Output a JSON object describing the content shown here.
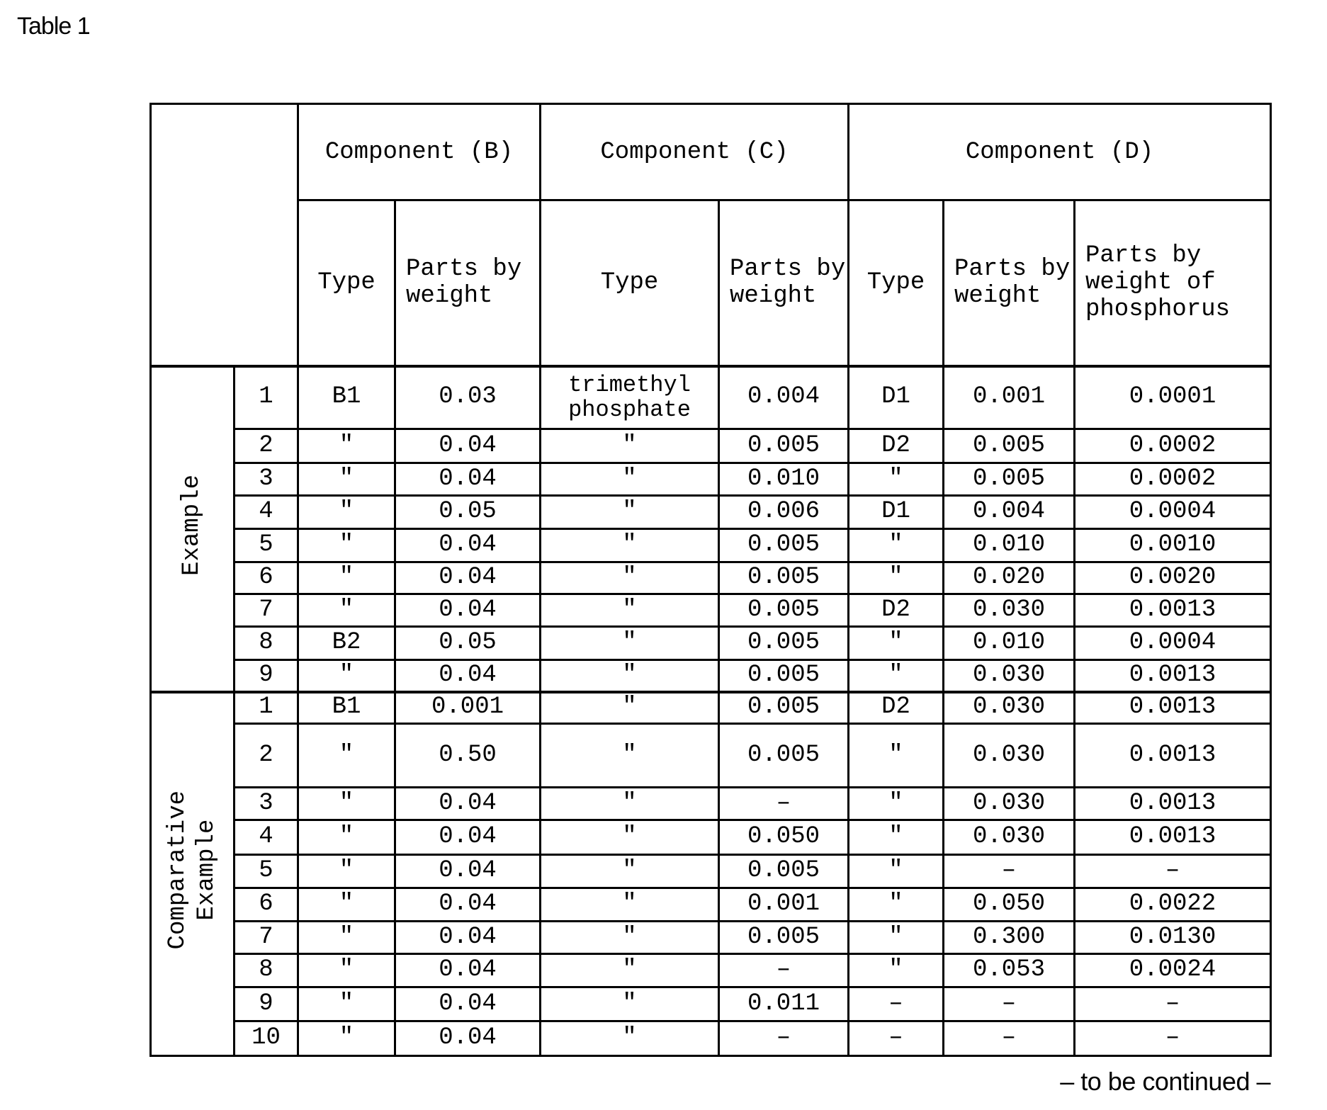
{
  "caption": "Table 1",
  "footer": "– to be continued –",
  "headers": {
    "component_b": "Component (B)",
    "component_c": "Component (C)",
    "component_d": "Component (D)",
    "type": "Type",
    "parts_by_weight": "Parts by weight",
    "parts_by_weight_phosphorus": "Parts by weight of phosphorus"
  },
  "groups": [
    {
      "label": "Example",
      "rows": [
        [
          "1",
          "B1",
          "0.03",
          "trimethyl phosphate",
          "0.004",
          "D1",
          "0.001",
          "0.0001"
        ],
        [
          "2",
          "\"",
          "0.04",
          "\"",
          "0.005",
          "D2",
          "0.005",
          "0.0002"
        ],
        [
          "3",
          "\"",
          "0.04",
          "\"",
          "0.010",
          "\"",
          "0.005",
          "0.0002"
        ],
        [
          "4",
          "\"",
          "0.05",
          "\"",
          "0.006",
          "D1",
          "0.004",
          "0.0004"
        ],
        [
          "5",
          "\"",
          "0.04",
          "\"",
          "0.005",
          "\"",
          "0.010",
          "0.0010"
        ],
        [
          "6",
          "\"",
          "0.04",
          "\"",
          "0.005",
          "\"",
          "0.020",
          "0.0020"
        ],
        [
          "7",
          "\"",
          "0.04",
          "\"",
          "0.005",
          "D2",
          "0.030",
          "0.0013"
        ],
        [
          "8",
          "B2",
          "0.05",
          "\"",
          "0.005",
          "\"",
          "0.010",
          "0.0004"
        ],
        [
          "9",
          "\"",
          "0.04",
          "\"",
          "0.005",
          "\"",
          "0.030",
          "0.0013"
        ]
      ]
    },
    {
      "label": "Comparative\nExample",
      "rows": [
        [
          "1",
          "B1",
          "0.001",
          "\"",
          "0.005",
          "D2",
          "0.030",
          "0.0013"
        ],
        [
          "2",
          "\"",
          "0.50",
          "\"",
          "0.005",
          "\"",
          "0.030",
          "0.0013"
        ],
        [
          "3",
          "\"",
          "0.04",
          "\"",
          "–",
          "\"",
          "0.030",
          "0.0013"
        ],
        [
          "4",
          "\"",
          "0.04",
          "\"",
          "0.050",
          "\"",
          "0.030",
          "0.0013"
        ],
        [
          "5",
          "\"",
          "0.04",
          "\"",
          "0.005",
          "\"",
          "–",
          "–"
        ],
        [
          "6",
          "\"",
          "0.04",
          "\"",
          "0.001",
          "\"",
          "0.050",
          "0.0022"
        ],
        [
          "7",
          "\"",
          "0.04",
          "\"",
          "0.005",
          "\"",
          "0.300",
          "0.0130"
        ],
        [
          "8",
          "\"",
          "0.04",
          "\"",
          "–",
          "\"",
          "0.053",
          "0.0024"
        ],
        [
          "9",
          "\"",
          "0.04",
          "\"",
          "0.011",
          "–",
          "–",
          "–"
        ],
        [
          "10",
          "\"",
          "0.04",
          "\"",
          "–",
          "–",
          "–",
          "–"
        ]
      ]
    }
  ]
}
